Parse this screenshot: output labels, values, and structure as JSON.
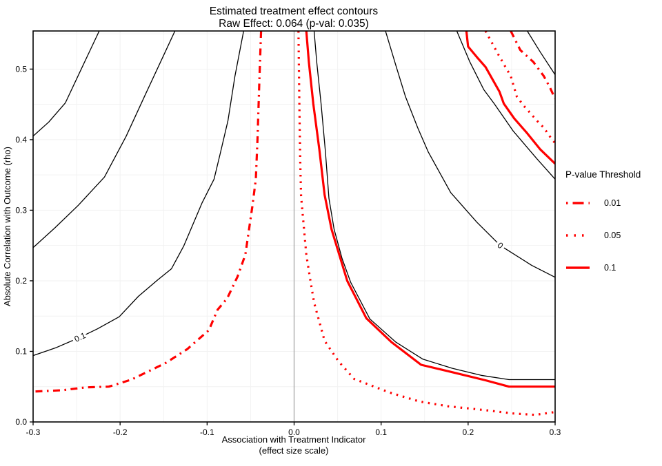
{
  "title": {
    "line1": "Estimated treatment effect contours",
    "line2": "Raw Effect: 0.064 (p-val: 0.035)"
  },
  "x_axis": {
    "title_line1": "Association with Treatment Indicator",
    "title_line2": "(effect size scale)",
    "ticks": [
      "-0.3",
      "-0.2",
      "-0.1",
      "0.0",
      "0.1",
      "0.2",
      "0.3"
    ],
    "tick_values": [
      -0.3,
      -0.2,
      -0.1,
      0.0,
      0.1,
      0.2,
      0.3
    ]
  },
  "y_axis": {
    "title": "Absolute Correlation with Outcome (rho)",
    "ticks": [
      "0.0",
      "0.1",
      "0.2",
      "0.3",
      "0.4",
      "0.5"
    ],
    "tick_values": [
      0.0,
      0.1,
      0.2,
      0.3,
      0.4,
      0.5
    ]
  },
  "legend": {
    "title": "P-value Threshold",
    "color": "#ff0000",
    "entries": [
      {
        "label": "0.01",
        "linetype": "dashdot"
      },
      {
        "label": "0.05",
        "linetype": "dotted"
      },
      {
        "label": "0.1",
        "linetype": "solid"
      }
    ]
  },
  "chart_data": {
    "type": "contour",
    "raw_effect": 0.064,
    "raw_p_value": 0.035,
    "x_range": [
      -0.3,
      0.3
    ],
    "y_range": [
      0,
      0.554
    ],
    "grid_step": 0.05,
    "reference_line_x": 0,
    "colors": {
      "estimate_contour": "#000000",
      "pvalue_contour": "#ff0000",
      "reference_line": "#a6a6a6",
      "grid": "#f2f2f2",
      "background": "#ffffff"
    },
    "estimate_contours": [
      {
        "label": "",
        "points": [
          [
            -0.224,
            0.554
          ],
          [
            -0.242,
            0.507
          ],
          [
            -0.263,
            0.452
          ],
          [
            -0.282,
            0.425
          ],
          [
            -0.3,
            0.405
          ]
        ]
      },
      {
        "label": "",
        "points": [
          [
            -0.137,
            0.554
          ],
          [
            -0.149,
            0.522
          ],
          [
            -0.171,
            0.464
          ],
          [
            -0.193,
            0.405
          ],
          [
            -0.218,
            0.347
          ],
          [
            -0.248,
            0.307
          ],
          [
            -0.275,
            0.275
          ],
          [
            -0.3,
            0.247
          ]
        ]
      },
      {
        "label": "0.1",
        "points": [
          [
            -0.058,
            0.554
          ],
          [
            -0.068,
            0.49
          ],
          [
            -0.076,
            0.427
          ],
          [
            -0.085,
            0.38
          ],
          [
            -0.092,
            0.344
          ],
          [
            -0.106,
            0.31
          ],
          [
            -0.127,
            0.249
          ],
          [
            -0.141,
            0.217
          ],
          [
            -0.157,
            0.201
          ],
          [
            -0.179,
            0.178
          ],
          [
            -0.201,
            0.149
          ],
          [
            -0.226,
            0.132
          ],
          [
            -0.246,
            0.12
          ],
          [
            -0.274,
            0.105
          ],
          [
            -0.3,
            0.094
          ]
        ]
      },
      {
        "label": "",
        "points": [
          [
            0.023,
            0.554
          ],
          [
            0.026,
            0.51
          ],
          [
            0.031,
            0.451
          ],
          [
            0.036,
            0.383
          ],
          [
            0.04,
            0.317
          ],
          [
            0.046,
            0.273
          ],
          [
            0.055,
            0.232
          ],
          [
            0.065,
            0.198
          ],
          [
            0.087,
            0.146
          ],
          [
            0.117,
            0.113
          ],
          [
            0.148,
            0.089
          ],
          [
            0.182,
            0.076
          ],
          [
            0.215,
            0.066
          ],
          [
            0.247,
            0.06
          ],
          [
            0.3,
            0.06
          ]
        ]
      },
      {
        "label": "0",
        "points": [
          [
            0.105,
            0.554
          ],
          [
            0.117,
            0.505
          ],
          [
            0.128,
            0.461
          ],
          [
            0.142,
            0.417
          ],
          [
            0.154,
            0.383
          ],
          [
            0.18,
            0.325
          ],
          [
            0.21,
            0.283
          ],
          [
            0.237,
            0.25
          ],
          [
            0.273,
            0.222
          ],
          [
            0.3,
            0.205
          ]
        ]
      },
      {
        "label": "",
        "points": [
          [
            0.187,
            0.554
          ],
          [
            0.202,
            0.51
          ],
          [
            0.218,
            0.471
          ],
          [
            0.23,
            0.451
          ],
          [
            0.252,
            0.412
          ],
          [
            0.279,
            0.373
          ],
          [
            0.3,
            0.344
          ]
        ]
      },
      {
        "label": "",
        "points": [
          [
            0.268,
            0.554
          ],
          [
            0.283,
            0.524
          ],
          [
            0.3,
            0.492
          ]
        ]
      }
    ],
    "pvalue_contours": [
      {
        "threshold": 0.01,
        "linetype": "dashdot",
        "branches": [
          [
            [
              -0.038,
              0.554
            ],
            [
              -0.04,
              0.48
            ],
            [
              -0.042,
              0.403
            ],
            [
              -0.044,
              0.344
            ],
            [
              -0.048,
              0.305
            ],
            [
              -0.056,
              0.237
            ],
            [
              -0.065,
              0.206
            ],
            [
              -0.077,
              0.175
            ],
            [
              -0.088,
              0.159
            ],
            [
              -0.098,
              0.13
            ],
            [
              -0.123,
              0.103
            ],
            [
              -0.147,
              0.084
            ],
            [
              -0.187,
              0.06
            ],
            [
              -0.213,
              0.05
            ],
            [
              -0.24,
              0.049
            ],
            [
              -0.266,
              0.045
            ],
            [
              -0.3,
              0.043
            ]
          ],
          [
            [
              0.249,
              0.554
            ],
            [
              0.26,
              0.527
            ],
            [
              0.275,
              0.51
            ],
            [
              0.287,
              0.49
            ],
            [
              0.294,
              0.474
            ],
            [
              0.3,
              0.458
            ]
          ]
        ]
      },
      {
        "threshold": 0.05,
        "linetype": "dotted",
        "branches": [
          [
            [
              0.005,
              0.554
            ],
            [
              0.006,
              0.451
            ],
            [
              0.007,
              0.373
            ],
            [
              0.008,
              0.32
            ],
            [
              0.014,
              0.237
            ],
            [
              0.019,
              0.198
            ],
            [
              0.023,
              0.169
            ],
            [
              0.035,
              0.115
            ],
            [
              0.051,
              0.086
            ],
            [
              0.069,
              0.061
            ],
            [
              0.109,
              0.042
            ],
            [
              0.144,
              0.029
            ],
            [
              0.178,
              0.022
            ],
            [
              0.218,
              0.017
            ],
            [
              0.252,
              0.012
            ],
            [
              0.277,
              0.01
            ],
            [
              0.3,
              0.014
            ]
          ],
          [
            [
              0.22,
              0.554
            ],
            [
              0.235,
              0.52
            ],
            [
              0.249,
              0.49
            ],
            [
              0.256,
              0.461
            ],
            [
              0.264,
              0.448
            ],
            [
              0.272,
              0.437
            ],
            [
              0.279,
              0.427
            ],
            [
              0.287,
              0.417
            ],
            [
              0.293,
              0.406
            ],
            [
              0.3,
              0.395
            ]
          ]
        ]
      },
      {
        "threshold": 0.1,
        "linetype": "solid",
        "branches": [
          [
            [
              0.014,
              0.554
            ],
            [
              0.017,
              0.51
            ],
            [
              0.022,
              0.451
            ],
            [
              0.029,
              0.386
            ],
            [
              0.035,
              0.322
            ],
            [
              0.043,
              0.273
            ],
            [
              0.061,
              0.2
            ],
            [
              0.083,
              0.147
            ],
            [
              0.112,
              0.113
            ],
            [
              0.146,
              0.081
            ],
            [
              0.18,
              0.071
            ],
            [
              0.22,
              0.059
            ],
            [
              0.247,
              0.05
            ],
            [
              0.3,
              0.05
            ]
          ],
          [
            [
              0.198,
              0.554
            ],
            [
              0.2,
              0.532
            ],
            [
              0.21,
              0.517
            ],
            [
              0.22,
              0.503
            ],
            [
              0.236,
              0.468
            ],
            [
              0.241,
              0.451
            ],
            [
              0.253,
              0.43
            ],
            [
              0.268,
              0.409
            ],
            [
              0.283,
              0.386
            ],
            [
              0.3,
              0.366
            ]
          ]
        ]
      }
    ],
    "contour_labels": [
      {
        "text": "0.1",
        "x": -0.246,
        "y": 0.12,
        "angle": -24
      },
      {
        "text": "0",
        "x": 0.237,
        "y": 0.25,
        "angle": 38
      }
    ]
  }
}
